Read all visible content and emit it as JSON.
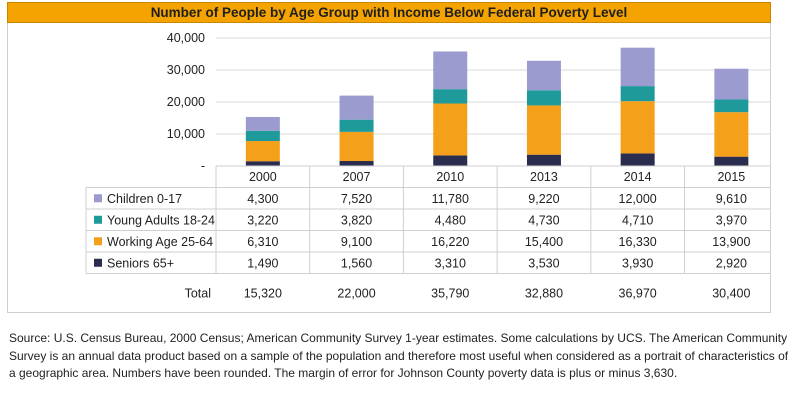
{
  "chart_data": {
    "type": "stacked-bar",
    "title": "Number of People by Age Group with Income Below Federal Poverty Level",
    "categories": [
      "2000",
      "2007",
      "2010",
      "2013",
      "2014",
      "2015"
    ],
    "y_ticks": [
      "-",
      "10,000",
      "20,000",
      "30,000",
      "40,000"
    ],
    "ylim": [
      0,
      40000
    ],
    "series": [
      {
        "name": "Seniors 65+",
        "color": "#2b2d4f",
        "values": [
          1490,
          1560,
          3310,
          3530,
          3930,
          2920
        ],
        "labels": [
          "1,490",
          "1,560",
          "3,310",
          "3,530",
          "3,930",
          "2,920"
        ]
      },
      {
        "name": "Working Age 25-64",
        "color": "#f5a01a",
        "values": [
          6310,
          9100,
          16220,
          15400,
          16330,
          13900
        ],
        "labels": [
          "6,310",
          "9,100",
          "16,220",
          "15,400",
          "16,330",
          "13,900"
        ]
      },
      {
        "name": "Young Adults 18-24",
        "color": "#1f9a9a",
        "values": [
          3220,
          3820,
          4480,
          4730,
          4710,
          3970
        ],
        "labels": [
          "3,220",
          "3,820",
          "4,480",
          "4,730",
          "4,710",
          "3,970"
        ]
      },
      {
        "name": "Children 0-17",
        "color": "#9b9bcf",
        "values": [
          4300,
          7520,
          11780,
          9220,
          12000,
          9610
        ],
        "labels": [
          "4,300",
          "7,520",
          "11,780",
          "9,220",
          "12,000",
          "9,610"
        ]
      }
    ],
    "table_row_order": [
      "Children 0-17",
      "Young Adults 18-24",
      "Working Age 25-64",
      "Seniors 65+"
    ],
    "total_label": "Total",
    "totals": [
      "15,320",
      "22,000",
      "35,790",
      "32,880",
      "36,970",
      "30,400"
    ]
  },
  "source_note": "Source: U.S. Census Bureau, 2000 Census; American Community Survey 1-year estimates.  Some calculations by UCS.  The American Community Survey is an annual data product based on a sample of the population and therefore most useful when considered as a portrait of characteristics of a geographic area.  Numbers have been rounded.  The margin of error for Johnson County poverty data is plus or minus 3,630."
}
